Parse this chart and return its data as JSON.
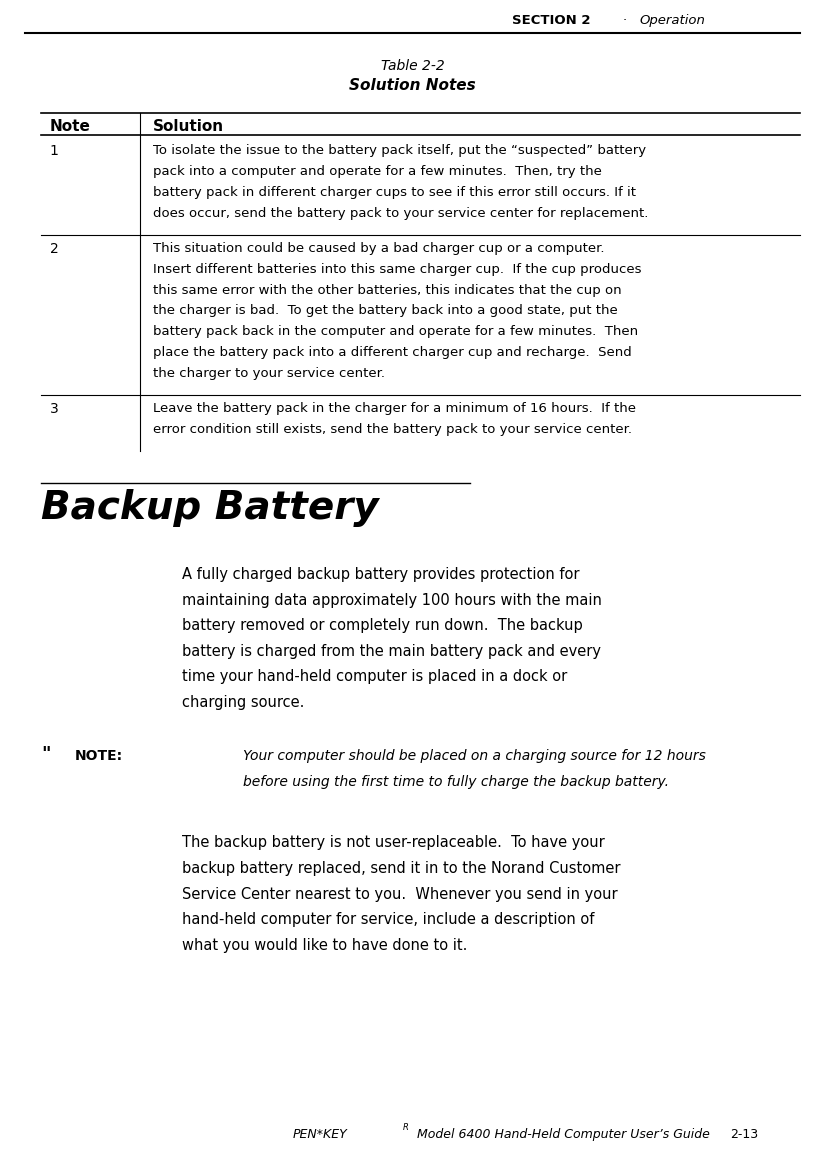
{
  "page_width": 8.33,
  "page_height": 11.62,
  "dpi": 100,
  "bg_color": "#ffffff",
  "header_bold": "SECTION 2",
  "header_dot": "·",
  "header_italic": "Operation",
  "table_title_line1": "Table 2-2",
  "table_title_line2": "Solution Notes",
  "table_col1_header": "Note",
  "table_col2_header": "Solution",
  "note1_num": "1",
  "note1_lines": [
    "To isolate the issue to the battery pack itself, put the “suspected” battery",
    "pack into a computer and operate for a few minutes.  Then, try the",
    "battery pack in different charger cups to see if this error still occurs. If it",
    "does occur, send the battery pack to your service center for replacement."
  ],
  "note2_num": "2",
  "note2_lines": [
    "This situation could be caused by a bad charger cup or a computer.",
    "Insert different batteries into this same charger cup.  If the cup produces",
    "this same error with the other batteries, this indicates that the cup on",
    "the charger is bad.  To get the battery back into a good state, put the",
    "battery pack back in the computer and operate for a few minutes.  Then",
    "place the battery pack into a different charger cup and recharge.  Send",
    "the charger to your service center."
  ],
  "note3_num": "3",
  "note3_lines": [
    "Leave the battery pack in the charger for a minimum of 16 hours.  If the",
    "error condition still exists, send the battery pack to your service center."
  ],
  "section_title": "Backup Battery",
  "body_lines": [
    "A fully charged backup battery provides protection for",
    "maintaining data approximately 100 hours with the main",
    "battery removed or completely run down.  The backup",
    "battery is charged from the main battery pack and every",
    "time your hand-held computer is placed in a dock or",
    "charging source."
  ],
  "note_quote": "\"",
  "note_label": "NOTE:",
  "note_text_lines": [
    "Your computer should be placed on a charging source for 12 hours",
    "before using the first time to fully charge the backup battery."
  ],
  "final_lines": [
    "The backup battery is not user-replaceable.  To have your",
    "backup battery replaced, send it in to the Norand Customer",
    "Service Center nearest to you.  Whenever you send in your",
    "hand-held computer for service, include a description of",
    "what you would like to have done to it."
  ],
  "footer_italic": "PEN*KEY",
  "footer_super": "R",
  "footer_rest": " Model 6400 Hand-Held Computer User’s Guide",
  "footer_page": "2-13"
}
